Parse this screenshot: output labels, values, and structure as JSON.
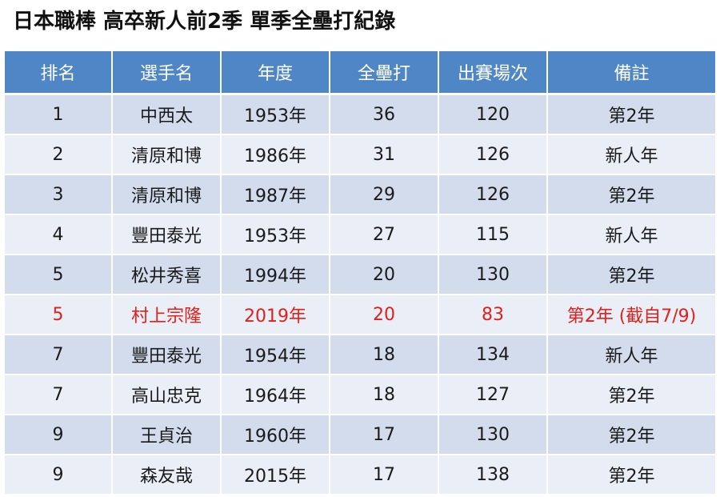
{
  "title": "日本職棒 高卒新人前2季 單季全壘打紀錄",
  "table": {
    "headers": [
      "排名",
      "選手名",
      "年度",
      "全壘打",
      "出賽場次",
      "備註"
    ],
    "rows": [
      [
        "1",
        "中西太",
        "1953年",
        "36",
        "120",
        "第2年"
      ],
      [
        "2",
        "清原和博",
        "1986年",
        "31",
        "126",
        "新人年"
      ],
      [
        "3",
        "清原和博",
        "1987年",
        "29",
        "126",
        "第2年"
      ],
      [
        "4",
        "豐田泰光",
        "1953年",
        "27",
        "115",
        "新人年"
      ],
      [
        "5",
        "松井秀喜",
        "1994年",
        "20",
        "130",
        "第2年"
      ],
      [
        "5",
        "村上宗隆",
        "2019年",
        "20",
        "83",
        "第2年 (截自7/9)"
      ],
      [
        "7",
        "豐田泰光",
        "1954年",
        "18",
        "134",
        "新人年"
      ],
      [
        "7",
        "高山忠克",
        "1964年",
        "18",
        "127",
        "第2年"
      ],
      [
        "9",
        "王貞治",
        "1960年",
        "17",
        "130",
        "第2年"
      ],
      [
        "9",
        "森友哉",
        "2015年",
        "17",
        "138",
        "第2年"
      ]
    ],
    "highlight_row_index": 5,
    "colors": {
      "header_bg": "#4f86c6",
      "header_text": "#ffffff",
      "row_odd_bg": "#d3dcec",
      "row_even_bg": "#eaeef6",
      "highlight_text": "#e0201a"
    }
  }
}
